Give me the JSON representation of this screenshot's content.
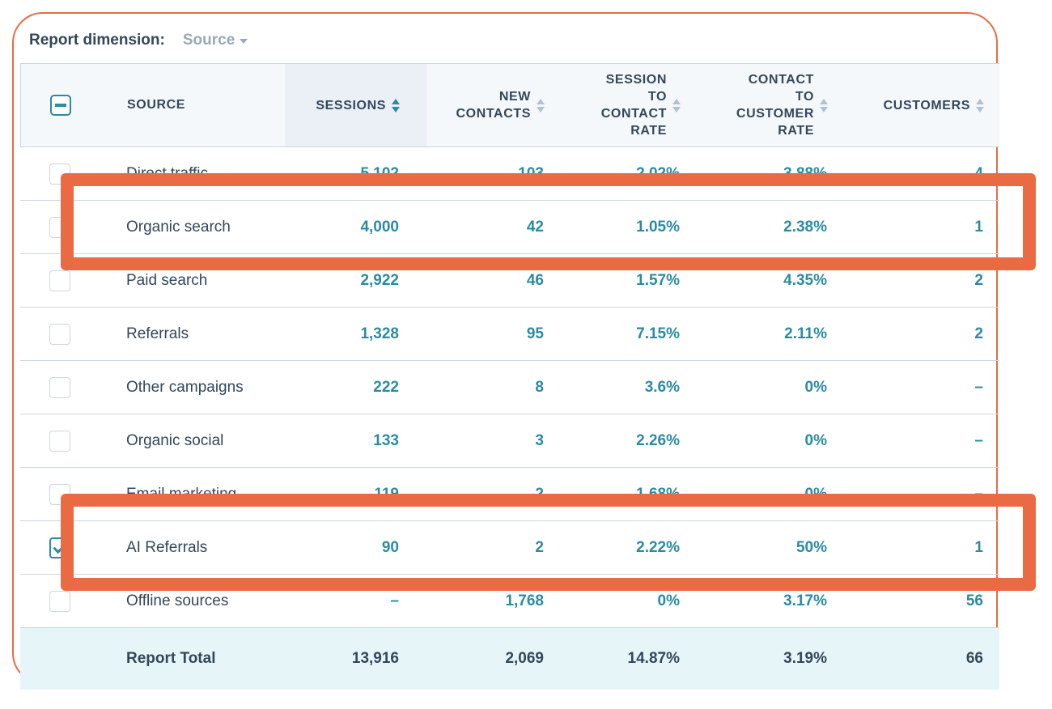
{
  "report_dimension": {
    "label": "Report dimension:",
    "value": "Source"
  },
  "columns": {
    "source": "SOURCE",
    "sessions": "SESSIONS",
    "new_contacts": [
      "NEW",
      "CONTACTS"
    ],
    "session_to_contact_rate": [
      "SESSION",
      "TO",
      "CONTACT",
      "RATE"
    ],
    "contact_to_customer_rate": [
      "CONTACT",
      "TO",
      "CUSTOMER",
      "RATE"
    ],
    "customers": "CUSTOMERS"
  },
  "rows": [
    {
      "source": "Direct traffic",
      "sessions": "5,102",
      "new_contacts": "103",
      "session_rate": "2.02%",
      "customer_rate": "3.88%",
      "customers": "4",
      "checked": false
    },
    {
      "source": "Organic search",
      "sessions": "4,000",
      "new_contacts": "42",
      "session_rate": "1.05%",
      "customer_rate": "2.38%",
      "customers": "1",
      "checked": false
    },
    {
      "source": "Paid search",
      "sessions": "2,922",
      "new_contacts": "46",
      "session_rate": "1.57%",
      "customer_rate": "4.35%",
      "customers": "2",
      "checked": false
    },
    {
      "source": "Referrals",
      "sessions": "1,328",
      "new_contacts": "95",
      "session_rate": "7.15%",
      "customer_rate": "2.11%",
      "customers": "2",
      "checked": false
    },
    {
      "source": "Other campaigns",
      "sessions": "222",
      "new_contacts": "8",
      "session_rate": "3.6%",
      "customer_rate": "0%",
      "customers": "–",
      "checked": false
    },
    {
      "source": "Organic social",
      "sessions": "133",
      "new_contacts": "3",
      "session_rate": "2.26%",
      "customer_rate": "0%",
      "customers": "–",
      "checked": false
    },
    {
      "source": "Email marketing",
      "sessions": "119",
      "new_contacts": "2",
      "session_rate": "1.68%",
      "customer_rate": "0%",
      "customers": "–",
      "checked": false
    },
    {
      "source": "AI Referrals",
      "sessions": "90",
      "new_contacts": "2",
      "session_rate": "2.22%",
      "customer_rate": "50%",
      "customers": "1",
      "checked": true
    },
    {
      "source": "Offline sources",
      "sessions": "–",
      "new_contacts": "1,768",
      "session_rate": "0%",
      "customer_rate": "3.17%",
      "customers": "56",
      "checked": false
    }
  ],
  "total": {
    "label": "Report Total",
    "sessions": "13,916",
    "new_contacts": "2,069",
    "session_rate": "14.87%",
    "customer_rate": "3.19%",
    "customers": "66"
  },
  "colors": {
    "accent": "#2a8ba3",
    "highlight": "#ea6b43",
    "text": "#33475b",
    "total_bg": "#e5f5f8"
  }
}
